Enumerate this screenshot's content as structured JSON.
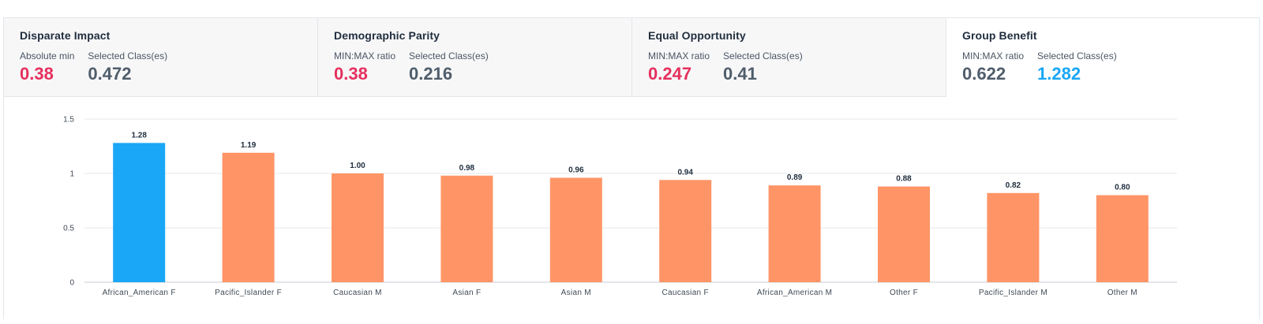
{
  "tabs": [
    {
      "title": "Disparate Impact",
      "metrics": [
        {
          "label": "Absolute min",
          "value": "0.38",
          "color": "red"
        },
        {
          "label": "Selected Class(es)",
          "value": "0.472",
          "color": "gray"
        }
      ]
    },
    {
      "title": "Demographic Parity",
      "metrics": [
        {
          "label": "MIN:MAX ratio",
          "value": "0.38",
          "color": "red"
        },
        {
          "label": "Selected Class(es)",
          "value": "0.216",
          "color": "gray"
        }
      ]
    },
    {
      "title": "Equal Opportunity",
      "metrics": [
        {
          "label": "MIN:MAX ratio",
          "value": "0.247",
          "color": "red"
        },
        {
          "label": "Selected Class(es)",
          "value": "0.41",
          "color": "gray"
        }
      ]
    },
    {
      "title": "Group Benefit",
      "metrics": [
        {
          "label": "MIN:MAX ratio",
          "value": "0.622",
          "color": "gray"
        },
        {
          "label": "Selected Class(es)",
          "value": "1.282",
          "color": "blue"
        }
      ]
    }
  ],
  "colors": {
    "selected_bar": "#1aa7f7",
    "other_bar": "#ff9566",
    "red": "#e5305d",
    "blue": "#19a7f5",
    "gray": "#4f5d6b"
  },
  "chart_data": {
    "type": "bar",
    "categories": [
      "African_American F",
      "Pacific_Islander F",
      "Caucasian M",
      "Asian F",
      "Asian M",
      "Caucasian F",
      "African_American M",
      "Other F",
      "Pacific_Islander M",
      "Other M"
    ],
    "values": [
      1.28,
      1.19,
      1.0,
      0.98,
      0.96,
      0.94,
      0.89,
      0.88,
      0.82,
      0.8
    ],
    "value_labels": [
      "1.28",
      "1.19",
      "1.00",
      "0.98",
      "0.96",
      "0.94",
      "0.89",
      "0.88",
      "0.82",
      "0.80"
    ],
    "selected": [
      true,
      false,
      false,
      false,
      false,
      false,
      false,
      false,
      false,
      false
    ],
    "y_ticks": [
      0,
      0.5,
      1,
      1.5
    ],
    "y_tick_labels": [
      "0",
      "0.5",
      "1",
      "1.5"
    ],
    "ylim": [
      0,
      1.5
    ],
    "grid": true,
    "title": "",
    "xlabel": "",
    "ylabel": ""
  }
}
